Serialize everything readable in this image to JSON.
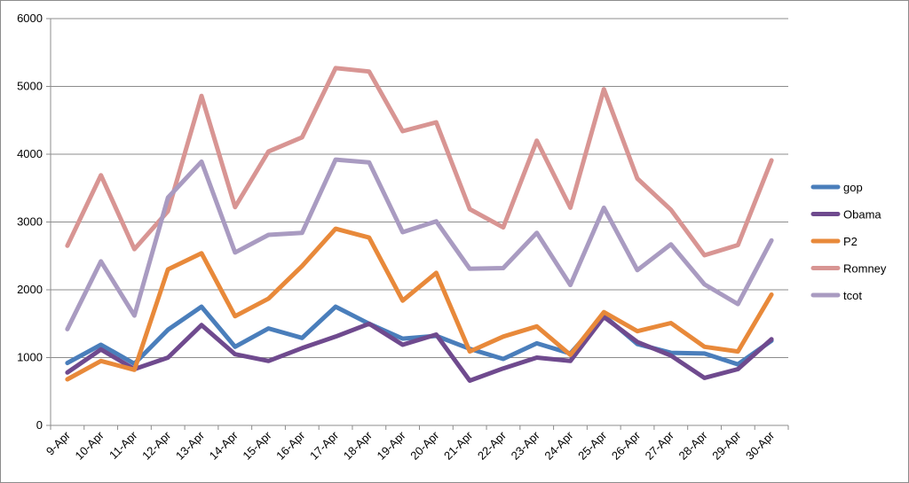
{
  "chart_data": {
    "type": "line",
    "title": "",
    "xlabel": "",
    "ylabel": "",
    "ylim": [
      0,
      6000
    ],
    "yticks": [
      0,
      1000,
      2000,
      3000,
      4000,
      5000,
      6000
    ],
    "grid": true,
    "legend_position": "right",
    "categories": [
      "9-Apr",
      "10-Apr",
      "11-Apr",
      "12-Apr",
      "13-Apr",
      "14-Apr",
      "15-Apr",
      "16-Apr",
      "17-Apr",
      "18-Apr",
      "19-Apr",
      "20-Apr",
      "21-Apr",
      "22-Apr",
      "23-Apr",
      "24-Apr",
      "25-Apr",
      "26-Apr",
      "27-Apr",
      "28-Apr",
      "29-Apr",
      "30-Apr"
    ],
    "series": [
      {
        "name": "gop",
        "color": "#4a7ebb",
        "values": [
          920,
          1190,
          910,
          1410,
          1750,
          1160,
          1430,
          1290,
          1750,
          1500,
          1280,
          1320,
          1130,
          980,
          1210,
          1060,
          1620,
          1200,
          1070,
          1060,
          900,
          1250
        ]
      },
      {
        "name": "Obama",
        "color": "#6f4a8e",
        "values": [
          780,
          1120,
          830,
          1000,
          1480,
          1050,
          950,
          1140,
          1310,
          1500,
          1190,
          1340,
          660,
          840,
          1000,
          950,
          1600,
          1230,
          1030,
          700,
          830,
          1270
        ]
      },
      {
        "name": "P2",
        "color": "#e8893a",
        "values": [
          680,
          950,
          820,
          2300,
          2540,
          1610,
          1870,
          2350,
          2900,
          2770,
          1840,
          2250,
          1090,
          1310,
          1460,
          1040,
          1670,
          1390,
          1510,
          1160,
          1090,
          1930
        ]
      },
      {
        "name": "Romney",
        "color": "#d89593",
        "values": [
          2650,
          3690,
          2600,
          3160,
          4860,
          3220,
          4040,
          4250,
          5270,
          5220,
          4340,
          4470,
          3190,
          2920,
          4200,
          3210,
          4960,
          3640,
          3180,
          2510,
          2660,
          3910
        ]
      },
      {
        "name": "tcot",
        "color": "#a99bc1",
        "values": [
          1420,
          2420,
          1620,
          3360,
          3890,
          2550,
          2810,
          2840,
          3920,
          3880,
          2850,
          3010,
          2310,
          2320,
          2840,
          2070,
          3210,
          2290,
          2670,
          2080,
          1790,
          2730
        ]
      }
    ]
  }
}
